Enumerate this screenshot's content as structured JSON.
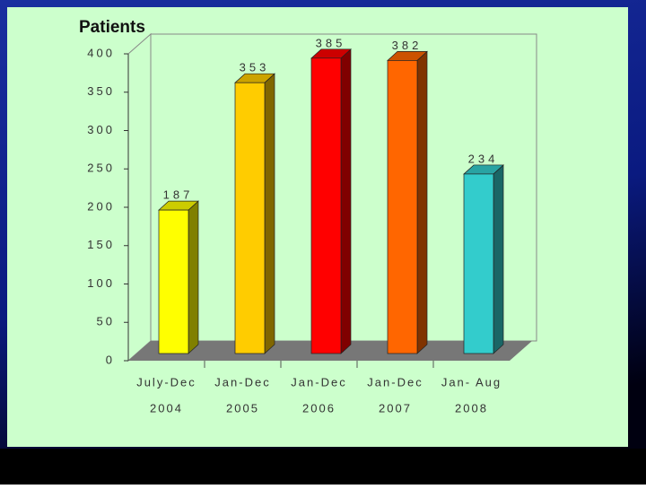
{
  "chart_data": {
    "type": "bar3d",
    "title": "Patients",
    "categories": [
      [
        "July-Dec",
        "2004"
      ],
      [
        "Jan-Dec",
        "2005"
      ],
      [
        "Jan-Dec",
        "2006"
      ],
      [
        "Jan-Dec",
        "2007"
      ],
      [
        "Jan- Aug",
        "2008"
      ]
    ],
    "values": [
      187,
      353,
      385,
      382,
      234
    ],
    "colors": [
      "#ffff00",
      "#ffcc00",
      "#ff0000",
      "#ff6600",
      "#33cccc"
    ],
    "ylim": [
      0,
      400
    ],
    "yticks": [
      0,
      50,
      100,
      150,
      200,
      250,
      300,
      350,
      400
    ],
    "grid": false
  }
}
